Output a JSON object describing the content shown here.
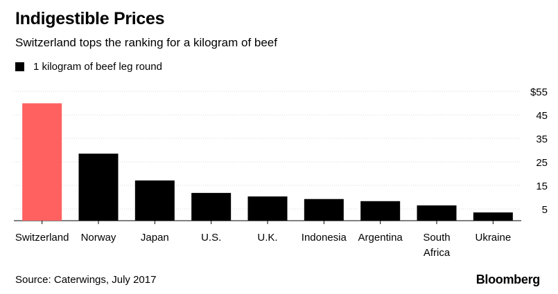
{
  "header": {
    "title": "Indigestible Prices",
    "subtitle": "Switzerland tops the ranking for a kilogram of beef"
  },
  "footer": {
    "source": "Source: Caterwings, July 2017",
    "brand": "Bloomberg"
  },
  "colors": {
    "highlight": "#ff6161",
    "bar": "#000000",
    "grid": "#d9d9d9"
  },
  "chart_data": {
    "type": "bar",
    "categories": [
      "Switzerland",
      "Norway",
      "Japan",
      "U.S.",
      "U.K.",
      "Indonesia",
      "Argentina",
      "South Africa",
      "Ukraine"
    ],
    "series": [
      {
        "name": "1 kilogram of beef leg round",
        "values": [
          49.9,
          28.5,
          17.1,
          11.8,
          10.3,
          9.2,
          8.3,
          6.5,
          3.5
        ]
      }
    ],
    "highlight_index": 0,
    "y_ticks": [
      5,
      15,
      25,
      35,
      45,
      55
    ],
    "y_tick_labels": [
      "5",
      "15",
      "25",
      "35",
      "45",
      "$55"
    ],
    "ylim": [
      0,
      55
    ],
    "grid": true,
    "y_axis_position": "right",
    "legend_position": "top-left"
  }
}
